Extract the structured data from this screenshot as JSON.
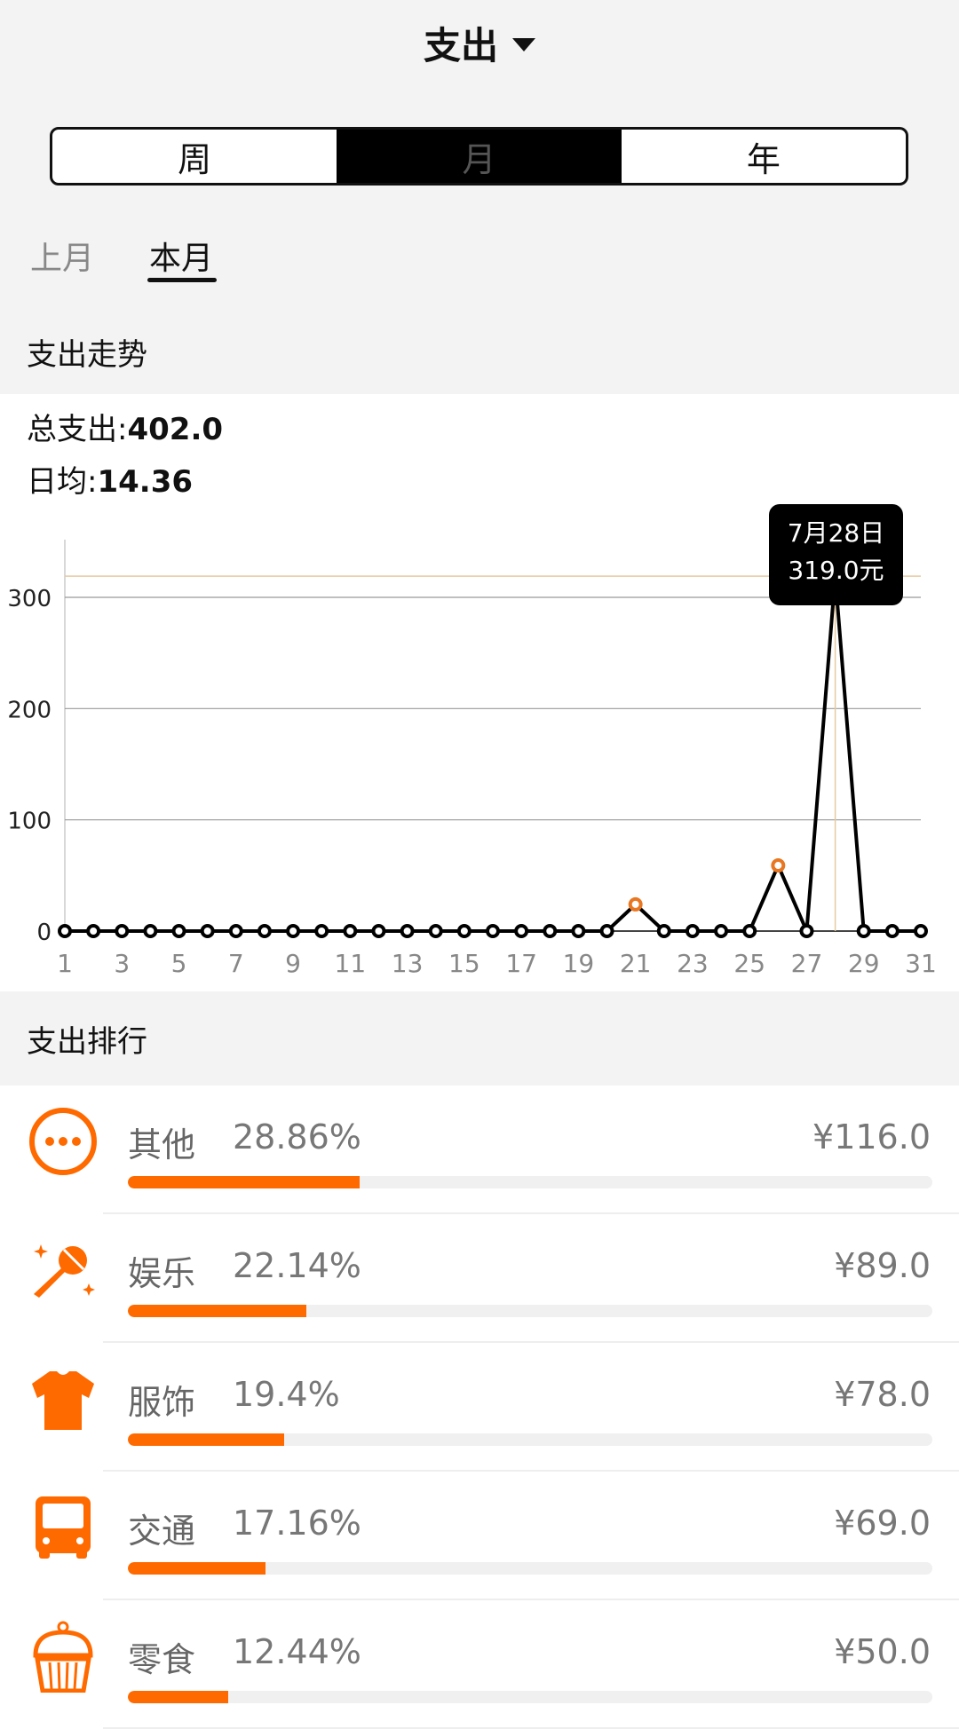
{
  "header": {
    "title": "支出"
  },
  "period_segments": [
    {
      "label": "周",
      "active": false
    },
    {
      "label": "月",
      "active": true
    },
    {
      "label": "年",
      "active": false
    }
  ],
  "period_tabs": {
    "prev": "上月",
    "current": "本月"
  },
  "trend": {
    "section_title": "支出走势",
    "total_label": "总支出:",
    "total_value": "402.0",
    "avg_label": "日均:",
    "avg_value": "14.36",
    "tooltip": {
      "date": "7月28日",
      "amount": "319.0元"
    }
  },
  "chart_data": {
    "type": "line",
    "x": [
      1,
      2,
      3,
      4,
      5,
      6,
      7,
      8,
      9,
      10,
      11,
      12,
      13,
      14,
      15,
      16,
      17,
      18,
      19,
      20,
      21,
      22,
      23,
      24,
      25,
      26,
      27,
      28,
      29,
      30,
      31
    ],
    "values": [
      0,
      0,
      0,
      0,
      0,
      0,
      0,
      0,
      0,
      0,
      0,
      0,
      0,
      0,
      0,
      0,
      0,
      0,
      0,
      0,
      24,
      0,
      0,
      0,
      0,
      59,
      0,
      319,
      0,
      0,
      0
    ],
    "ylim": [
      0,
      350
    ],
    "yticks": [
      0,
      100,
      200,
      300
    ],
    "xticks": [
      1,
      3,
      5,
      7,
      9,
      11,
      13,
      15,
      17,
      19,
      21,
      23,
      25,
      27,
      29,
      31
    ],
    "grid": true,
    "highlight_x": 28,
    "line_color": "#000000",
    "highlight_point_color": "#e87722"
  },
  "ranking": {
    "section_title": "支出排行",
    "accent": "#ff6a00",
    "items": [
      {
        "icon": "more-dots-icon",
        "label": "其他",
        "percent": "28.86%",
        "pct_value": 28.86,
        "amount": "¥116.0"
      },
      {
        "icon": "microphone-icon",
        "label": "娱乐",
        "percent": "22.14%",
        "pct_value": 22.14,
        "amount": "¥89.0"
      },
      {
        "icon": "tshirt-icon",
        "label": "服饰",
        "percent": "19.4%",
        "pct_value": 19.4,
        "amount": "¥78.0"
      },
      {
        "icon": "bus-icon",
        "label": "交通",
        "percent": "17.16%",
        "pct_value": 17.16,
        "amount": "¥69.0"
      },
      {
        "icon": "cupcake-icon",
        "label": "零食",
        "percent": "12.44%",
        "pct_value": 12.44,
        "amount": "¥50.0"
      }
    ]
  }
}
